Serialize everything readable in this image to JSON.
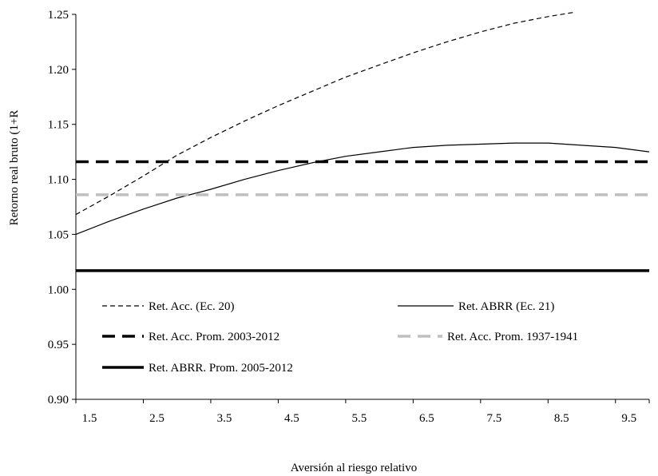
{
  "chart_data": {
    "type": "line",
    "title": "",
    "xlabel": "Aversión al riesgo relativo",
    "ylabel": "Retorno real bruto (1+R",
    "xlim": [
      1.5,
      10.0
    ],
    "ylim": [
      0.9,
      1.25
    ],
    "x_ticks": [
      "1.5",
      "2.5",
      "3.5",
      "4.5",
      "5.5",
      "6.5",
      "7.5",
      "8.5",
      "9.5"
    ],
    "y_ticks": [
      "0.90",
      "0.95",
      "1.00",
      "1.05",
      "1.10",
      "1.15",
      "1.20",
      "1.25"
    ],
    "grid": false,
    "legend_position": "lower-center",
    "series": [
      {
        "name": "Ret. Acc. (Ec. 20)",
        "style": "dashed-thin",
        "color": "#000000",
        "x": [
          1.5,
          2.0,
          2.5,
          3.0,
          3.5,
          4.0,
          4.5,
          5.0,
          5.5,
          6.0,
          6.5,
          7.0,
          7.5,
          8.0,
          8.5,
          8.9
        ],
        "y": [
          1.068,
          1.085,
          1.103,
          1.122,
          1.138,
          1.153,
          1.167,
          1.18,
          1.193,
          1.204,
          1.215,
          1.225,
          1.234,
          1.242,
          1.248,
          1.252
        ]
      },
      {
        "name": "Ret. ABRR (Ec. 21)",
        "style": "solid-thin",
        "color": "#000000",
        "x": [
          1.5,
          2.0,
          2.5,
          3.0,
          3.5,
          4.0,
          4.5,
          5.0,
          5.5,
          6.0,
          6.5,
          7.0,
          7.5,
          8.0,
          8.5,
          9.0,
          9.5,
          10.0
        ],
        "y": [
          1.05,
          1.062,
          1.073,
          1.083,
          1.091,
          1.1,
          1.108,
          1.115,
          1.121,
          1.125,
          1.129,
          1.131,
          1.132,
          1.133,
          1.133,
          1.131,
          1.129,
          1.125
        ]
      },
      {
        "name": "Ret. Acc. Prom. 2003-2012",
        "style": "dashed-thick",
        "color": "#000000",
        "x": [
          1.5,
          10.0
        ],
        "y": [
          1.116,
          1.116
        ]
      },
      {
        "name": "Ret. Acc. Prom. 1937-1941",
        "style": "dashed-thick",
        "color": "#bfbfbf",
        "x": [
          1.5,
          10.0
        ],
        "y": [
          1.086,
          1.086
        ]
      },
      {
        "name": "Ret. ABRR. Prom. 2005-2012",
        "style": "solid-thick",
        "color": "#000000",
        "x": [
          1.5,
          10.0
        ],
        "y": [
          1.017,
          1.017
        ]
      }
    ]
  }
}
